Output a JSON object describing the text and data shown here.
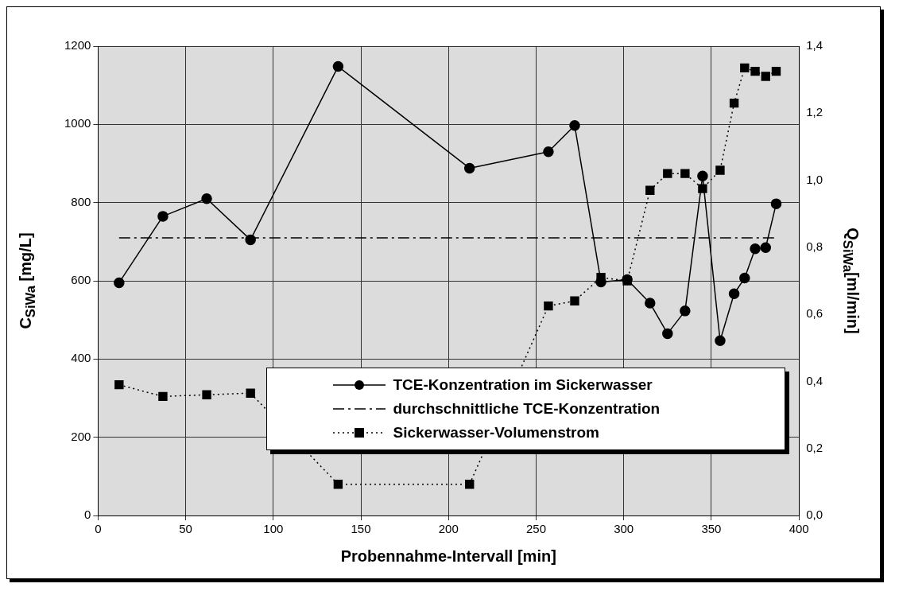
{
  "chart_data": {
    "type": "line",
    "xlabel": "Probennahme-Intervall [min]",
    "ylabel": "C$_{SiWa}$ [mg/L]",
    "y2label": "Q$_{SiWa}$[ml/min]",
    "xlim": [
      0,
      400
    ],
    "xticks": [
      0,
      50,
      100,
      150,
      200,
      250,
      300,
      350,
      400
    ],
    "ylim": [
      0,
      1200
    ],
    "yticks": [
      0,
      200,
      400,
      600,
      800,
      1000,
      1200
    ],
    "y2lim": [
      0,
      1.4
    ],
    "y2ticks": [
      {
        "value": 0,
        "label": "0,0"
      },
      {
        "value": 0.2,
        "label": "0,2"
      },
      {
        "value": 0.4,
        "label": "0,4"
      },
      {
        "value": 0.6,
        "label": "0,6"
      },
      {
        "value": 0.8,
        "label": "0,8"
      },
      {
        "value": 1.0,
        "label": "1,0"
      },
      {
        "value": 1.2,
        "label": "1,2"
      },
      {
        "value": 1.4,
        "label": "1,4"
      }
    ],
    "grid": true,
    "legend": "bottom right",
    "series": [
      {
        "name": "TCE-Konzentration im Sickerwasser",
        "color": "#000000",
        "marker": "circle",
        "line_style": "solid",
        "x": [
          12,
          37,
          62,
          87,
          137,
          212,
          257,
          272,
          287,
          302,
          315,
          325,
          335,
          345,
          355,
          363,
          369,
          375,
          381,
          387
        ],
        "values": [
          595,
          765,
          810,
          705,
          1148,
          888,
          930,
          997,
          597,
          603,
          543,
          465,
          523,
          868,
          447,
          567,
          607,
          682,
          685,
          797
        ]
      },
      {
        "name": "durchschnittliche TCE-Konzentration",
        "color": "#000000",
        "marker": "none",
        "line_style": "dashed",
        "x": [
          12,
          387
        ],
        "values": [
          710,
          710
        ]
      },
      {
        "name": "Sickerwasser-Volumenstrom",
        "color": "#000000",
        "marker": "square",
        "line_style": "dotted",
        "axis": "y2",
        "x": [
          12,
          37,
          62,
          87,
          137,
          212,
          257,
          272,
          287,
          302,
          315,
          325,
          335,
          345,
          355,
          363,
          369,
          375,
          381,
          387
        ],
        "values": [
          0.39,
          0.355,
          0.36,
          0.365,
          0.093,
          0.093,
          0.625,
          0.64,
          0.71,
          0.7,
          0.97,
          1.02,
          1.02,
          0.975,
          1.03,
          1.23,
          1.335,
          1.325,
          1.31,
          1.325
        ]
      }
    ]
  }
}
